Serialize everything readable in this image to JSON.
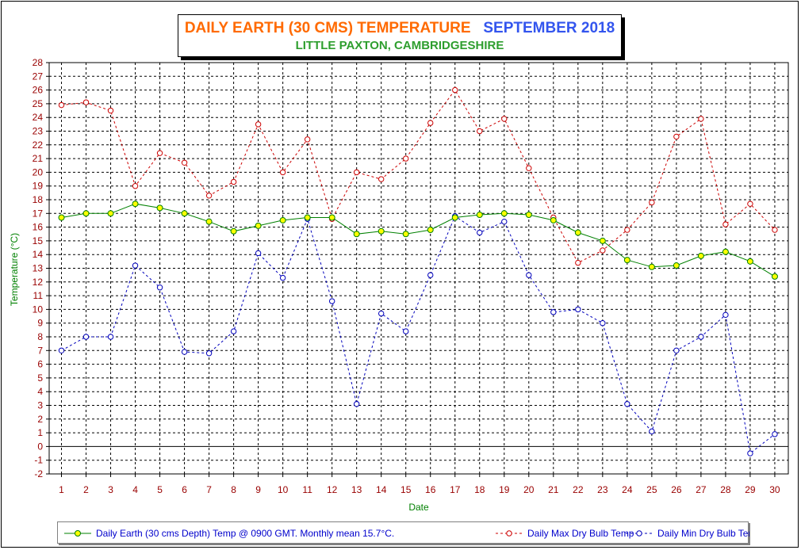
{
  "title": {
    "main": "DAILY EARTH (30 CMS) TEMPERATURE",
    "month": "SEPTEMBER 2018",
    "subtitle": "LITTLE PAXTON, CAMBRIDGESHIRE"
  },
  "colors": {
    "title_main": "#ff6a00",
    "title_month": "#3355ee",
    "subtitle": "#2e9e2e",
    "earth_line": "#008000",
    "earth_marker": "#ffff00",
    "max_line": "#cc0000",
    "min_line": "#0000bb",
    "axis_labels": "#990000",
    "axis_titles": "#008000",
    "legend_text": "#0000cc"
  },
  "chart_data": {
    "type": "line",
    "ylabel": "Temperature (°C)",
    "xlabel": "Date",
    "ylim": [
      -2,
      28
    ],
    "yticks": [
      -2,
      -1,
      0,
      1,
      2,
      3,
      4,
      5,
      6,
      7,
      8,
      9,
      10,
      11,
      12,
      13,
      14,
      15,
      16,
      17,
      18,
      19,
      20,
      21,
      22,
      23,
      24,
      25,
      26,
      27,
      28
    ],
    "x": [
      1,
      2,
      3,
      4,
      5,
      6,
      7,
      8,
      9,
      10,
      11,
      12,
      13,
      14,
      15,
      16,
      17,
      18,
      19,
      20,
      21,
      22,
      23,
      24,
      25,
      26,
      27,
      28,
      29,
      30
    ],
    "grid": true,
    "legend_position": "bottom",
    "series": [
      {
        "name": "Daily Earth (30 cms Depth) Temp @ 0900 GMT. Monthly mean 15.7°C.",
        "style": "solid",
        "values": [
          16.7,
          17.0,
          17.0,
          17.7,
          17.4,
          17.0,
          16.4,
          15.7,
          16.1,
          16.5,
          16.7,
          16.7,
          15.5,
          15.7,
          15.5,
          15.8,
          16.7,
          16.9,
          17.0,
          16.9,
          16.5,
          15.6,
          15.0,
          13.6,
          13.1,
          13.2,
          13.9,
          14.2,
          13.5,
          12.4
        ]
      },
      {
        "name": "Daily Max Dry Bulb Temp",
        "style": "dashed",
        "values": [
          24.9,
          25.1,
          24.5,
          19.0,
          21.4,
          20.7,
          18.3,
          19.3,
          23.5,
          20.0,
          22.4,
          16.6,
          20.0,
          19.5,
          21.0,
          23.6,
          26.0,
          23.0,
          23.9,
          20.3,
          16.7,
          13.4,
          14.3,
          15.8,
          17.8,
          22.6,
          23.9,
          16.2,
          17.7,
          15.8
        ]
      },
      {
        "name": "Daily Min Dry Bulb Temp",
        "style": "dashed",
        "values": [
          7.0,
          8.0,
          8.0,
          13.2,
          11.6,
          6.9,
          6.8,
          8.4,
          14.1,
          12.3,
          16.6,
          10.6,
          3.1,
          9.7,
          8.4,
          12.5,
          16.8,
          15.6,
          16.4,
          12.5,
          9.8,
          10.0,
          9.0,
          3.1,
          1.1,
          7.0,
          8.0,
          9.6,
          -0.5,
          0.9
        ]
      }
    ]
  }
}
